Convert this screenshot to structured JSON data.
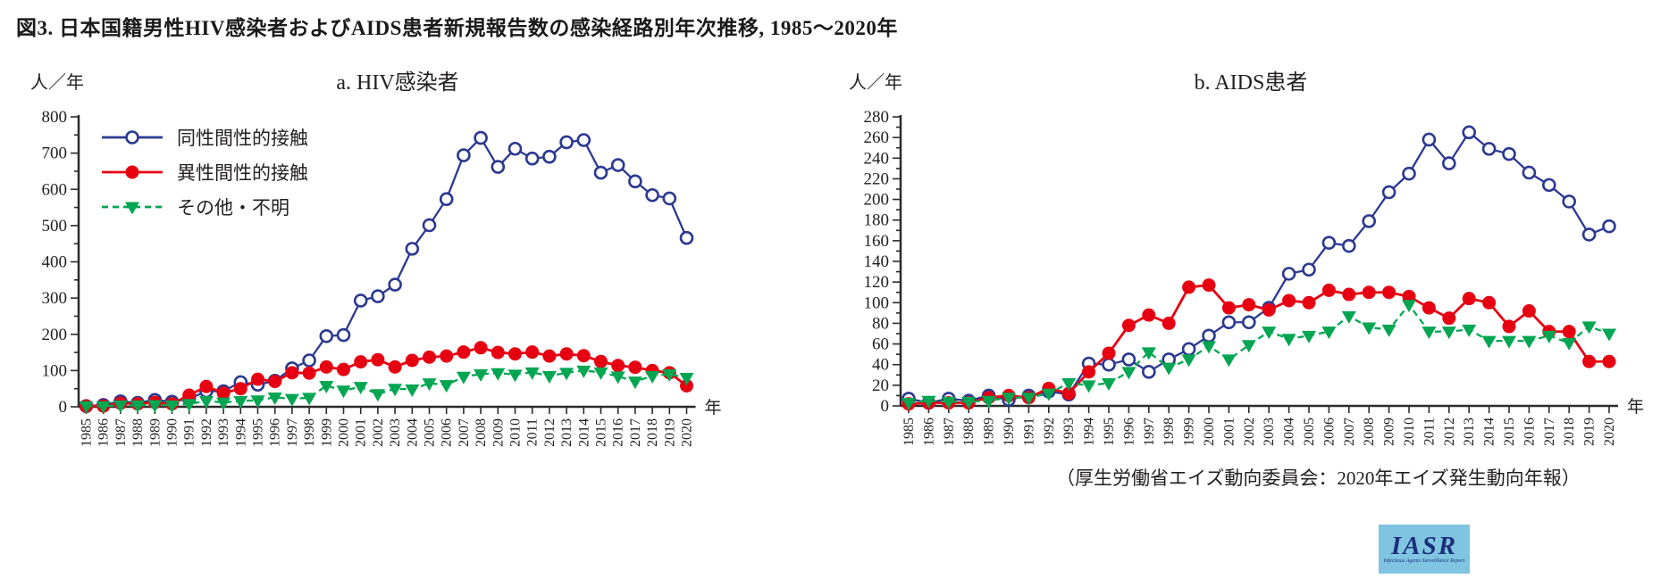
{
  "figure": {
    "title": "図3. 日本国籍男性HIV感染者およびAIDS患者新規報告数の感染経路別年次推移, 1985～2020年",
    "source": "（厚生労働省エイズ動向委員会：2020年エイズ発生動向年報）",
    "logo": {
      "text": "IASR",
      "subtext": "Infectious Agents Surveillance Report"
    }
  },
  "legend": [
    {
      "label": "同性間性的接触",
      "color": "#2b3990",
      "marker": "open-circle",
      "line": "solid"
    },
    {
      "label": "異性間性的接触",
      "color": "#e60012",
      "marker": "filled-circle",
      "line": "solid"
    },
    {
      "label": "その他・不明",
      "color": "#00a651",
      "marker": "filled-triangle-down",
      "line": "dashed"
    }
  ],
  "chart_data": [
    {
      "type": "line",
      "title": "a. HIV感染者",
      "ylabel": "人／年",
      "xlabel": "年",
      "ylim": [
        0,
        800
      ],
      "ytick_step": 100,
      "yminor_step": 50,
      "grid": false,
      "years": [
        1985,
        1986,
        1987,
        1988,
        1989,
        1990,
        1991,
        1992,
        1993,
        1994,
        1995,
        1996,
        1997,
        1998,
        1999,
        2000,
        2001,
        2002,
        2003,
        2004,
        2005,
        2006,
        2007,
        2008,
        2009,
        2010,
        2011,
        2012,
        2013,
        2014,
        2015,
        2016,
        2017,
        2018,
        2019,
        2020
      ],
      "series": [
        {
          "name": "同性間性的接触",
          "color": "#2b3990",
          "marker": "open-circle",
          "line": "solid",
          "values": [
            2,
            5,
            15,
            11,
            19,
            14,
            22,
            43,
            43,
            68,
            61,
            72,
            106,
            128,
            195,
            198,
            293,
            305,
            337,
            436,
            501,
            573,
            694,
            742,
            662,
            712,
            685,
            690,
            730,
            736,
            646,
            667,
            622,
            584,
            575,
            466
          ]
        },
        {
          "name": "異性間性的接触",
          "color": "#e60012",
          "marker": "filled-circle",
          "line": "solid",
          "values": [
            2,
            2,
            10,
            8,
            12,
            8,
            32,
            56,
            38,
            50,
            76,
            70,
            94,
            93,
            110,
            103,
            124,
            130,
            110,
            128,
            137,
            140,
            151,
            163,
            150,
            146,
            151,
            140,
            146,
            141,
            125,
            114,
            109,
            100,
            94,
            58
          ]
        },
        {
          "name": "その他・不明",
          "color": "#00a651",
          "marker": "filled-triangle-down",
          "line": "dashed",
          "values": [
            2,
            2,
            4,
            4,
            5,
            4,
            8,
            16,
            12,
            16,
            18,
            26,
            22,
            25,
            58,
            45,
            55,
            35,
            50,
            48,
            65,
            60,
            83,
            90,
            93,
            89,
            95,
            85,
            94,
            100,
            95,
            84,
            70,
            85,
            90,
            80
          ]
        }
      ]
    },
    {
      "type": "line",
      "title": "b. AIDS患者",
      "ylabel": "人／年",
      "xlabel": "年",
      "ylim": [
        0,
        280
      ],
      "ytick_step": 20,
      "yminor_step": 10,
      "grid": false,
      "years": [
        1985,
        1986,
        1987,
        1988,
        1989,
        1990,
        1991,
        1992,
        1993,
        1994,
        1995,
        1996,
        1997,
        1998,
        1999,
        2000,
        2001,
        2002,
        2003,
        2004,
        2005,
        2006,
        2007,
        2008,
        2009,
        2010,
        2011,
        2012,
        2013,
        2014,
        2015,
        2016,
        2017,
        2018,
        2019,
        2020
      ],
      "series": [
        {
          "name": "同性間性的接触",
          "color": "#2b3990",
          "marker": "open-circle",
          "line": "solid",
          "values": [
            7,
            3,
            7,
            5,
            10,
            6,
            10,
            14,
            11,
            41,
            40,
            45,
            33,
            45,
            55,
            68,
            81,
            81,
            95,
            128,
            132,
            158,
            155,
            179,
            207,
            225,
            258,
            235,
            265,
            249,
            244,
            226,
            214,
            198,
            166,
            174
          ]
        },
        {
          "name": "異性間性的接触",
          "color": "#e60012",
          "marker": "filled-circle",
          "line": "solid",
          "values": [
            2,
            3,
            3,
            3,
            8,
            10,
            8,
            17,
            12,
            33,
            51,
            78,
            88,
            80,
            115,
            117,
            95,
            98,
            93,
            102,
            100,
            112,
            108,
            110,
            110,
            106,
            95,
            85,
            104,
            100,
            77,
            92,
            72,
            72,
            43,
            43
          ]
        },
        {
          "name": "その他・不明",
          "color": "#00a651",
          "marker": "filled-triangle-down",
          "line": "dashed",
          "values": [
            3,
            5,
            4,
            4,
            5,
            8,
            8,
            12,
            22,
            20,
            22,
            33,
            52,
            37,
            45,
            58,
            45,
            59,
            72,
            65,
            68,
            72,
            87,
            76,
            74,
            98,
            72,
            72,
            74,
            63,
            63,
            63,
            68,
            61,
            77,
            70
          ]
        }
      ]
    }
  ]
}
